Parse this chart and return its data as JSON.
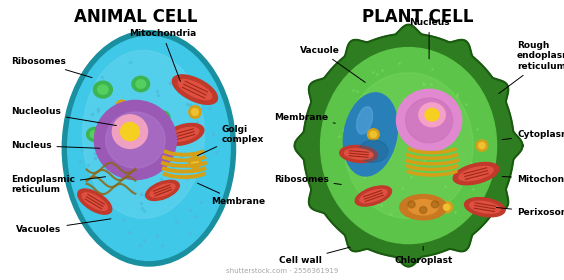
{
  "title_animal": "ANIMAL CELL",
  "title_plant": "PLANT CELL",
  "background_color": "#ffffff",
  "watermark": "shutterstock.com · 2556361919",
  "label_fontsize": 6.5,
  "title_fontsize": 12
}
